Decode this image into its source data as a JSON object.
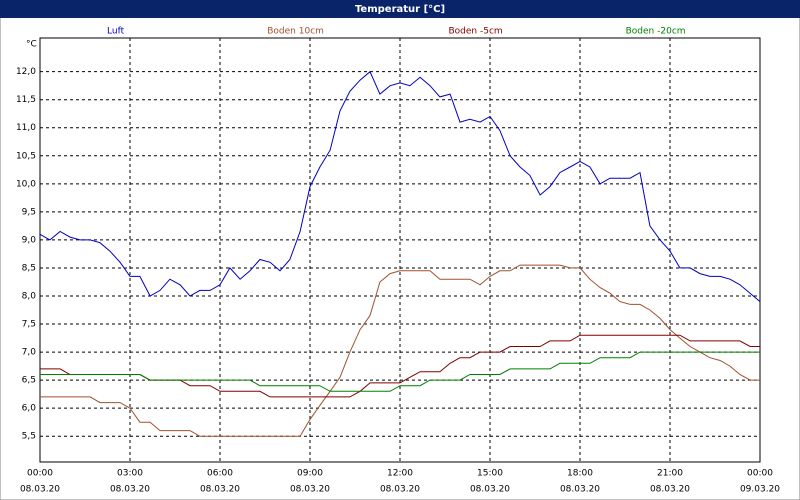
{
  "chart_data": {
    "type": "line",
    "title": "Temperatur [°C]",
    "y_unit": "°C",
    "x": [
      0,
      0.33,
      0.67,
      1,
      1.33,
      1.67,
      2,
      2.33,
      2.67,
      3,
      3.33,
      3.67,
      4,
      4.33,
      4.67,
      5,
      5.33,
      5.67,
      6,
      6.33,
      6.67,
      7,
      7.33,
      7.67,
      8,
      8.33,
      8.67,
      9,
      9.33,
      9.67,
      10,
      10.33,
      10.67,
      11,
      11.33,
      11.67,
      12,
      12.33,
      12.67,
      13,
      13.33,
      13.67,
      14,
      14.33,
      14.67,
      15,
      15.33,
      15.67,
      16,
      16.33,
      16.67,
      17,
      17.33,
      17.67,
      18,
      18.33,
      18.67,
      19,
      19.33,
      19.67,
      20,
      20.33,
      20.67,
      21,
      21.33,
      21.67,
      22,
      22.33,
      22.67,
      23,
      23.33,
      23.67,
      24
    ],
    "series": [
      {
        "name": "Luft",
        "color": "#0000c0",
        "values": [
          9.1,
          9.0,
          9.15,
          9.05,
          9.0,
          9.0,
          8.95,
          8.8,
          8.6,
          8.35,
          8.35,
          8.0,
          8.1,
          8.3,
          8.2,
          8.0,
          8.1,
          8.1,
          8.2,
          8.5,
          8.3,
          8.45,
          8.65,
          8.6,
          8.45,
          8.65,
          9.15,
          9.95,
          10.3,
          10.6,
          11.3,
          11.65,
          11.85,
          12.0,
          11.6,
          11.75,
          11.8,
          11.75,
          11.9,
          11.75,
          11.55,
          11.6,
          11.1,
          11.15,
          11.1,
          11.2,
          10.95,
          10.5,
          10.3,
          10.15,
          9.8,
          9.95,
          10.2,
          10.3,
          10.4,
          10.3,
          10.0,
          10.1,
          10.1,
          10.1,
          10.2,
          9.25,
          9.0,
          8.8,
          8.5,
          8.5,
          8.4,
          8.35,
          8.35,
          8.3,
          8.2,
          8.05,
          7.9
        ]
      },
      {
        "name": "Boden 10cm",
        "color": "#a0522d",
        "values": [
          6.2,
          6.2,
          6.2,
          6.2,
          6.2,
          6.2,
          6.1,
          6.1,
          6.1,
          6.0,
          5.75,
          5.75,
          5.6,
          5.6,
          5.6,
          5.6,
          5.5,
          5.5,
          5.5,
          5.5,
          5.5,
          5.5,
          5.5,
          5.5,
          5.5,
          5.5,
          5.5,
          5.8,
          6.05,
          6.3,
          6.55,
          7.0,
          7.4,
          7.65,
          8.25,
          8.4,
          8.45,
          8.45,
          8.45,
          8.45,
          8.3,
          8.3,
          8.3,
          8.3,
          8.2,
          8.35,
          8.45,
          8.45,
          8.55,
          8.55,
          8.55,
          8.55,
          8.55,
          8.5,
          8.5,
          8.3,
          8.15,
          8.05,
          7.9,
          7.85,
          7.85,
          7.75,
          7.6,
          7.4,
          7.25,
          7.1,
          7.0,
          6.9,
          6.85,
          6.75,
          6.6,
          6.5,
          6.5
        ]
      },
      {
        "name": "Boden -5cm",
        "color": "#800000",
        "values": [
          6.7,
          6.7,
          6.7,
          6.6,
          6.6,
          6.6,
          6.6,
          6.6,
          6.6,
          6.6,
          6.6,
          6.5,
          6.5,
          6.5,
          6.5,
          6.4,
          6.4,
          6.4,
          6.3,
          6.3,
          6.3,
          6.3,
          6.3,
          6.2,
          6.2,
          6.2,
          6.2,
          6.2,
          6.2,
          6.2,
          6.2,
          6.2,
          6.3,
          6.45,
          6.45,
          6.45,
          6.45,
          6.55,
          6.65,
          6.65,
          6.65,
          6.8,
          6.9,
          6.9,
          7.0,
          7.0,
          7.0,
          7.1,
          7.1,
          7.1,
          7.1,
          7.2,
          7.2,
          7.2,
          7.3,
          7.3,
          7.3,
          7.3,
          7.3,
          7.3,
          7.3,
          7.3,
          7.3,
          7.3,
          7.3,
          7.2,
          7.2,
          7.2,
          7.2,
          7.2,
          7.2,
          7.1,
          7.1
        ]
      },
      {
        "name": "Boden -20cm",
        "color": "#008000",
        "values": [
          6.6,
          6.6,
          6.6,
          6.6,
          6.6,
          6.6,
          6.6,
          6.6,
          6.6,
          6.6,
          6.6,
          6.5,
          6.5,
          6.5,
          6.5,
          6.5,
          6.5,
          6.5,
          6.5,
          6.5,
          6.5,
          6.5,
          6.4,
          6.4,
          6.4,
          6.4,
          6.4,
          6.4,
          6.4,
          6.3,
          6.3,
          6.3,
          6.3,
          6.3,
          6.3,
          6.3,
          6.4,
          6.4,
          6.4,
          6.5,
          6.5,
          6.5,
          6.5,
          6.6,
          6.6,
          6.6,
          6.6,
          6.7,
          6.7,
          6.7,
          6.7,
          6.7,
          6.8,
          6.8,
          6.8,
          6.8,
          6.9,
          6.9,
          6.9,
          6.9,
          7.0,
          7.0,
          7.0,
          7.0,
          7.0,
          7.0,
          7.0,
          7.0,
          7.0,
          7.0,
          7.0,
          7.0,
          7.0
        ]
      }
    ],
    "xlim": [
      0,
      24
    ],
    "xticks": [
      {
        "value": 0,
        "label": "00:00"
      },
      {
        "value": 3,
        "label": "03:00"
      },
      {
        "value": 6,
        "label": "06:00"
      },
      {
        "value": 9,
        "label": "09:00"
      },
      {
        "value": 12,
        "label": "12:00"
      },
      {
        "value": 15,
        "label": "15:00"
      },
      {
        "value": 18,
        "label": "18:00"
      },
      {
        "value": 21,
        "label": "21:00"
      },
      {
        "value": 24,
        "label": "00:00"
      }
    ],
    "xtick_dates": [
      "08.03.20",
      "08.03.20",
      "08.03.20",
      "08.03.20",
      "08.03.20",
      "08.03.20",
      "08.03.20",
      "08.03.20",
      "09.03.20"
    ],
    "ylim": [
      5.04,
      12.6
    ],
    "yticks": [
      {
        "value": 5.5,
        "label": "5,5"
      },
      {
        "value": 6,
        "label": "6,0"
      },
      {
        "value": 6.5,
        "label": "6,5"
      },
      {
        "value": 7,
        "label": "7,0"
      },
      {
        "value": 7.5,
        "label": "7,5"
      },
      {
        "value": 8,
        "label": "8,0"
      },
      {
        "value": 8.5,
        "label": "8,5"
      },
      {
        "value": 9,
        "label": "9,0"
      },
      {
        "value": 9.5,
        "label": "9,5"
      },
      {
        "value": 10,
        "label": "10,0"
      },
      {
        "value": 10.5,
        "label": "10,5"
      },
      {
        "value": 11,
        "label": "11,0"
      },
      {
        "value": 11.5,
        "label": "11,5"
      },
      {
        "value": 12,
        "label": "12,0"
      }
    ],
    "grid": true
  }
}
